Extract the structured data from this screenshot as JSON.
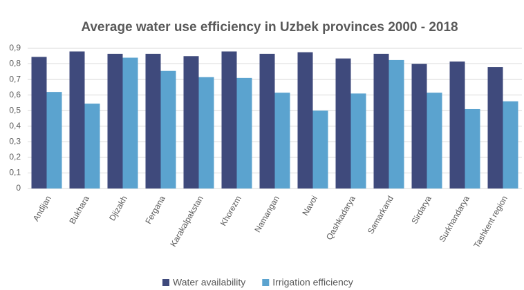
{
  "chart_data": {
    "type": "bar",
    "title": "Average water use efficiency in Uzbek provinces 2000 - 2018",
    "categories": [
      "Andijan",
      "Bukhara",
      "Djizakh",
      "Fergana",
      "Karakalpakstan",
      "Khorezm",
      "Namangan",
      "Navoi",
      "Qashkadarya",
      "Samarkand",
      "Sirdarya",
      "Surkhandarya",
      "Tashkent region"
    ],
    "series": [
      {
        "name": "Water availability",
        "color": "#3f4a7c",
        "values": [
          0.845,
          0.88,
          0.865,
          0.865,
          0.85,
          0.88,
          0.865,
          0.875,
          0.835,
          0.865,
          0.8,
          0.815,
          0.78
        ]
      },
      {
        "name": "Irrigation efficiency",
        "color": "#5ba3cf",
        "values": [
          0.62,
          0.545,
          0.84,
          0.755,
          0.715,
          0.71,
          0.615,
          0.5,
          0.61,
          0.825,
          0.615,
          0.51,
          0.56
        ]
      }
    ],
    "ylim": [
      0,
      0.9
    ],
    "yticks": [
      0,
      {
        "value": 0.1,
        "label": "0,1"
      },
      {
        "value": 0.2,
        "label": "0,2"
      },
      {
        "value": 0.3,
        "label": "0,3"
      },
      {
        "value": 0.4,
        "label": "0,4"
      },
      {
        "value": 0.5,
        "label": "0,5"
      },
      {
        "value": 0.6,
        "label": "0,6"
      },
      {
        "value": 0.7,
        "label": "0,7"
      },
      {
        "value": 0.8,
        "label": "0,8"
      },
      {
        "value": 0.9,
        "label": "0,9"
      }
    ],
    "grid": true,
    "legend": "bottom"
  }
}
